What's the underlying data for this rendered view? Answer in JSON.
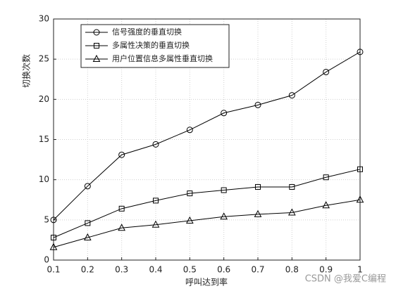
{
  "chart_data": {
    "type": "line",
    "xlabel": "呼叫达到率",
    "ylabel": "切换次数",
    "x": [
      0.1,
      0.2,
      0.3,
      0.4,
      0.5,
      0.6,
      0.7,
      0.8,
      0.9,
      1
    ],
    "series": [
      {
        "name": "信号强度的垂直切换",
        "color": "#000000",
        "marker": "circle",
        "values": [
          5.0,
          9.2,
          13.1,
          14.4,
          16.2,
          18.3,
          19.3,
          20.5,
          23.4,
          25.9
        ]
      },
      {
        "name": "多属性决策的垂直切换",
        "color": "#000000",
        "marker": "square",
        "values": [
          2.8,
          4.6,
          6.4,
          7.4,
          8.3,
          8.7,
          9.1,
          9.1,
          10.3,
          11.3
        ]
      },
      {
        "name": "用户位置信息多属性垂直切换",
        "color": "#000000",
        "marker": "triangle",
        "values": [
          1.6,
          2.8,
          4.0,
          4.4,
          4.9,
          5.4,
          5.7,
          5.9,
          6.8,
          7.5
        ]
      }
    ],
    "xlim": [
      0.1,
      1
    ],
    "xticks": [
      0.1,
      0.2,
      0.3,
      0.4,
      0.5,
      0.6,
      0.7,
      0.8,
      0.9,
      1
    ],
    "ylim": [
      0,
      30
    ],
    "yticks": [
      0,
      5,
      10,
      15,
      20,
      25,
      30
    ],
    "grid": true,
    "legend": "upper left",
    "watermark": "CSDN @我爱C编程"
  }
}
